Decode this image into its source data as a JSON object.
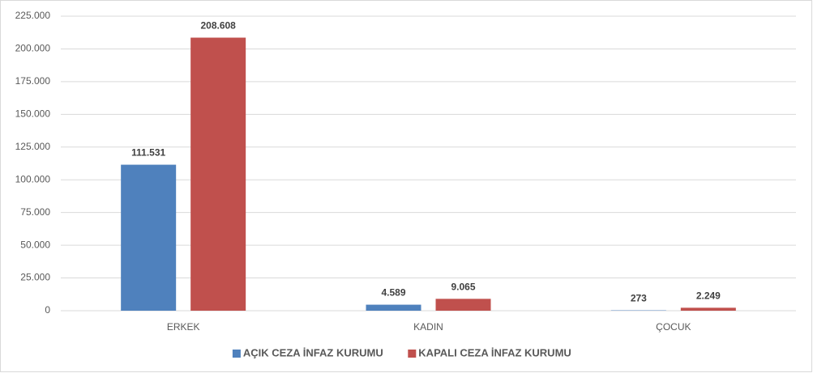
{
  "chart_data": {
    "type": "bar",
    "categories": [
      "ERKEK",
      "KADIN",
      "ÇOCUK"
    ],
    "series": [
      {
        "name": "AÇIK CEZA İNFAZ KURUMU",
        "color": "#4f81bd",
        "values": [
          111531,
          4589,
          273
        ],
        "value_labels": [
          "111.531",
          "4.589",
          "273"
        ]
      },
      {
        "name": "KAPALI CEZA İNFAZ KURUMU",
        "color": "#c0504d",
        "values": [
          208608,
          9065,
          2249
        ],
        "value_labels": [
          "208.608",
          "9.065",
          "2.249"
        ]
      }
    ],
    "ylim": [
      0,
      225000
    ],
    "yticks": [
      0,
      {
        "value": 25000,
        "label": "25.000"
      },
      {
        "value": 50000,
        "label": "50.000"
      },
      {
        "value": 75000,
        "label": "75.000"
      },
      {
        "value": 100000,
        "label": "100.000"
      },
      {
        "value": 125000,
        "label": "125.000"
      },
      {
        "value": 150000,
        "label": "150.000"
      },
      {
        "value": 175000,
        "label": "175.000"
      },
      {
        "value": 200000,
        "label": "200.000"
      },
      {
        "value": 225000,
        "label": "225.000"
      }
    ],
    "grid": true,
    "legend": "bottom"
  }
}
